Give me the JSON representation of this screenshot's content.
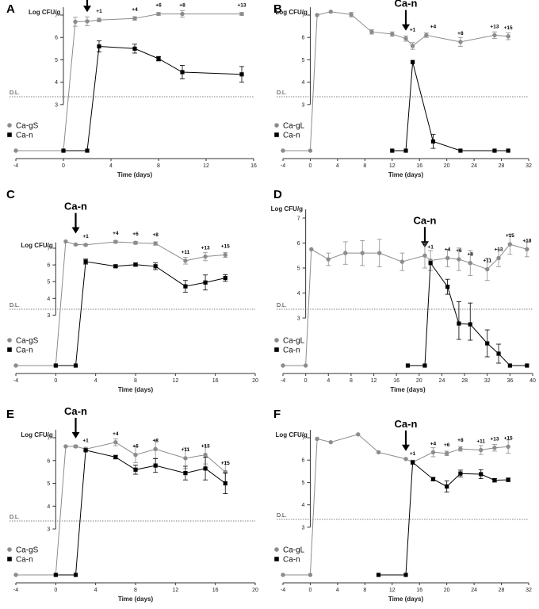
{
  "figure": {
    "panels": [
      "A",
      "B",
      "C",
      "D",
      "E",
      "F"
    ],
    "ylabel": "Log CFU/g",
    "xlabel": "Time (days)",
    "detection_limit_label": "D.L.",
    "arrow_label": "Ca-n",
    "colors": {
      "resident": "#8c8c8c",
      "challenge": "#000000"
    }
  },
  "chart_data": [
    {
      "type": "line",
      "panel": "A",
      "title": "",
      "xlabel": "Time (days)",
      "ylabel": "Log CFU/g",
      "xlim": [
        -4,
        16
      ],
      "xticks": [
        -4,
        0,
        4,
        8,
        12,
        16
      ],
      "ylim": [
        0,
        7.5
      ],
      "yticks": [
        3,
        4,
        5,
        6,
        7
      ],
      "detection_limit": 3.35,
      "arrow_x": 2,
      "series": [
        {
          "name": "Ca-gS",
          "x": [
            -4,
            0,
            1,
            2,
            3,
            6,
            8,
            10,
            15
          ],
          "y": [
            0,
            0,
            6.7,
            6.72,
            6.78,
            6.85,
            7.05,
            7.05,
            7.05
          ],
          "err": [
            0,
            0,
            0.2,
            0.2,
            0.08,
            0.08,
            0.06,
            0.15,
            0.06
          ]
        },
        {
          "name": "Ca-n",
          "x": [
            0,
            2,
            3,
            6,
            8,
            10,
            15
          ],
          "y": [
            0,
            0,
            5.6,
            5.5,
            5.05,
            4.45,
            4.35
          ],
          "err": [
            0,
            0,
            0.25,
            0.2,
            0.1,
            0.3,
            0.35
          ]
        }
      ],
      "annotations": [
        {
          "x": 3,
          "y": 6.78,
          "text": "+1"
        },
        {
          "x": 6,
          "y": 6.85,
          "text": "+4"
        },
        {
          "x": 8,
          "y": 7.05,
          "text": "+6"
        },
        {
          "x": 10,
          "y": 7.05,
          "text": "+8"
        },
        {
          "x": 15,
          "y": 7.05,
          "text": "+13"
        }
      ],
      "legend": [
        "Ca-gS",
        "Ca-n"
      ]
    },
    {
      "type": "line",
      "panel": "B",
      "title": "",
      "xlabel": "Time (days)",
      "ylabel": "Log CFU/g",
      "xlim": [
        -4,
        32
      ],
      "xticks": [
        -4,
        0,
        4,
        8,
        12,
        16,
        20,
        24,
        28,
        32
      ],
      "ylim": [
        0,
        7.5
      ],
      "yticks": [
        3,
        4,
        5,
        6,
        7
      ],
      "detection_limit": 3.35,
      "arrow_x": 14,
      "series": [
        {
          "name": "Ca-gL",
          "x": [
            -4,
            0,
            1,
            3,
            6,
            9,
            12,
            14,
            15,
            17,
            22,
            27,
            29
          ],
          "y": [
            0,
            0,
            7.0,
            7.15,
            7.02,
            6.25,
            6.15,
            5.95,
            5.62,
            6.1,
            5.8,
            6.1,
            6.05
          ],
          "err": [
            0,
            0,
            0,
            0,
            0.1,
            0.1,
            0.1,
            0.12,
            0.15,
            0.1,
            0.2,
            0.15,
            0.15
          ]
        },
        {
          "name": "Ca-n",
          "x": [
            12,
            14,
            15,
            18,
            22,
            27,
            29
          ],
          "y": [
            0,
            0,
            4.9,
            0.6,
            0,
            0,
            0
          ],
          "err": [
            0,
            0,
            0,
            0.45,
            0,
            0,
            0
          ]
        }
      ],
      "annotations": [
        {
          "x": 15,
          "y": 5.95,
          "text": "+1"
        },
        {
          "x": 18,
          "y": 6.1,
          "text": "+4"
        },
        {
          "x": 22,
          "y": 5.8,
          "text": "+8"
        },
        {
          "x": 27,
          "y": 6.1,
          "text": "+13"
        },
        {
          "x": 29,
          "y": 6.05,
          "text": "+15"
        }
      ],
      "legend": [
        "Ca-gL",
        "Ca-n"
      ]
    },
    {
      "type": "line",
      "panel": "C",
      "title": "",
      "xlabel": "Time (days)",
      "ylabel": "Log CFU/g",
      "xlim": [
        -4,
        20
      ],
      "xticks": [
        -4,
        0,
        4,
        8,
        12,
        16,
        20
      ],
      "ylim": [
        0,
        7.5
      ],
      "yticks": [
        3,
        4,
        5,
        6,
        7
      ],
      "detection_limit": 3.35,
      "arrow_x": 2,
      "series": [
        {
          "name": "Ca-gS",
          "x": [
            -4,
            0,
            1,
            2,
            3,
            6,
            8,
            10,
            13,
            15,
            17
          ],
          "y": [
            0,
            0,
            7.4,
            7.22,
            7.2,
            7.38,
            7.32,
            7.28,
            6.25,
            6.5,
            6.6
          ],
          "err": [
            0,
            0,
            0,
            0.05,
            0.05,
            0.08,
            0.08,
            0.1,
            0.2,
            0.25,
            0.15
          ]
        },
        {
          "name": "Ca-n",
          "x": [
            0,
            2,
            3,
            6,
            8,
            10,
            13,
            15,
            17
          ],
          "y": [
            0,
            0,
            6.2,
            5.92,
            6.02,
            5.92,
            4.72,
            4.95,
            5.22
          ],
          "err": [
            0,
            0,
            0.15,
            0.08,
            0.1,
            0.2,
            0.35,
            0.45,
            0.2
          ]
        }
      ],
      "annotations": [
        {
          "x": 3,
          "y": 7.2,
          "text": "+1"
        },
        {
          "x": 6,
          "y": 7.38,
          "text": "+4"
        },
        {
          "x": 8,
          "y": 7.32,
          "text": "+6"
        },
        {
          "x": 10,
          "y": 7.28,
          "text": "+8"
        },
        {
          "x": 13,
          "y": 6.25,
          "text": "+11"
        },
        {
          "x": 15,
          "y": 6.5,
          "text": "+13"
        },
        {
          "x": 17,
          "y": 6.6,
          "text": "+15"
        }
      ],
      "legend": [
        "Ca-gS",
        "Ca-n"
      ]
    },
    {
      "type": "line",
      "panel": "D",
      "title": "",
      "xlabel": "Time (days)",
      "ylabel": "Log CFU/g",
      "xlim": [
        -4,
        40
      ],
      "xticks": [
        -4,
        0,
        4,
        8,
        12,
        16,
        20,
        24,
        28,
        32,
        36,
        40
      ],
      "ylim": [
        0,
        7.5
      ],
      "yticks": [
        3,
        4,
        5,
        6,
        7
      ],
      "detection_limit": 3.35,
      "arrow_x": 21,
      "series": [
        {
          "name": "Ca-gL",
          "x": [
            -4,
            0,
            1,
            4,
            7,
            10,
            13,
            17,
            21,
            22,
            25,
            27,
            29,
            32,
            34,
            36,
            39
          ],
          "y": [
            0,
            0,
            5.75,
            5.35,
            5.6,
            5.6,
            5.6,
            5.25,
            5.5,
            5.3,
            5.4,
            5.35,
            5.2,
            4.95,
            5.4,
            5.95,
            5.75
          ],
          "err": [
            0,
            0,
            0,
            0.25,
            0.45,
            0.5,
            0.55,
            0.35,
            0.5,
            0.4,
            0.35,
            0.45,
            0.5,
            0.45,
            0.35,
            0.4,
            0.3
          ]
        },
        {
          "name": "Ca-n",
          "x": [
            18,
            21,
            22,
            25,
            27,
            29,
            32,
            34,
            36,
            39
          ],
          "y": [
            0,
            0,
            5.2,
            4.25,
            2.65,
            2.6,
            1.4,
            0.75,
            0,
            0
          ],
          "err": [
            0,
            0,
            0,
            0.3,
            1.0,
            1.0,
            0.85,
            0.6,
            0,
            0
          ]
        }
      ],
      "annotations": [
        {
          "x": 22,
          "y": 5.5,
          "text": "+1"
        },
        {
          "x": 25,
          "y": 5.4,
          "text": "+4"
        },
        {
          "x": 27,
          "y": 5.35,
          "text": "+6"
        },
        {
          "x": 29,
          "y": 5.2,
          "text": "+8"
        },
        {
          "x": 32,
          "y": 4.95,
          "text": "+11"
        },
        {
          "x": 34,
          "y": 5.4,
          "text": "+13"
        },
        {
          "x": 36,
          "y": 5.95,
          "text": "+15"
        },
        {
          "x": 39,
          "y": 5.75,
          "text": "+18"
        }
      ],
      "legend": [
        "Ca-gL",
        "Ca-n"
      ]
    },
    {
      "type": "line",
      "panel": "E",
      "title": "",
      "xlabel": "Time (days)",
      "ylabel": "Log CFU/g",
      "xlim": [
        -4,
        20
      ],
      "xticks": [
        -4,
        0,
        4,
        8,
        12,
        16,
        20
      ],
      "ylim": [
        0,
        7.5
      ],
      "yticks": [
        3,
        4,
        5,
        6,
        7
      ],
      "detection_limit": 3.35,
      "arrow_x": 2,
      "series": [
        {
          "name": "Ca-gS",
          "x": [
            -4,
            0,
            1,
            2,
            3,
            6,
            8,
            10,
            13,
            15,
            17
          ],
          "y": [
            0,
            0,
            6.62,
            6.62,
            6.5,
            6.8,
            6.25,
            6.5,
            6.1,
            6.25,
            5.5
          ],
          "err": [
            0,
            0,
            0,
            0.05,
            0.08,
            0.15,
            0.35,
            0.4,
            0.45,
            0.4,
            0.45
          ]
        },
        {
          "name": "Ca-n",
          "x": [
            0,
            2,
            3,
            6,
            8,
            10,
            13,
            15,
            17
          ],
          "y": [
            0,
            0,
            6.45,
            6.15,
            5.6,
            5.78,
            5.45,
            5.65,
            5.0
          ],
          "err": [
            0,
            0,
            0,
            0.08,
            0.2,
            0.3,
            0.3,
            0.5,
            0.45
          ]
        }
      ],
      "annotations": [
        {
          "x": 3,
          "y": 6.5,
          "text": "+1"
        },
        {
          "x": 6,
          "y": 6.8,
          "text": "+4"
        },
        {
          "x": 8,
          "y": 6.25,
          "text": "+6"
        },
        {
          "x": 10,
          "y": 6.5,
          "text": "+8"
        },
        {
          "x": 13,
          "y": 6.1,
          "text": "+11"
        },
        {
          "x": 15,
          "y": 6.25,
          "text": "+13"
        },
        {
          "x": 17,
          "y": 5.5,
          "text": "+15"
        }
      ],
      "legend": [
        "Ca-gS",
        "Ca-n"
      ]
    },
    {
      "type": "line",
      "panel": "F",
      "title": "",
      "xlabel": "Time (days)",
      "ylabel": "Log CFU/g",
      "xlim": [
        -4,
        32
      ],
      "xticks": [
        -4,
        0,
        4,
        8,
        12,
        16,
        20,
        24,
        28,
        32
      ],
      "ylim": [
        0,
        7.5
      ],
      "yticks": [
        3,
        4,
        5,
        6,
        7
      ],
      "detection_limit": 3.35,
      "arrow_x": 14,
      "series": [
        {
          "name": "Ca-gL",
          "x": [
            -4,
            0,
            1,
            3,
            7,
            10,
            14,
            15,
            18,
            20,
            22,
            25,
            27,
            29
          ],
          "y": [
            0,
            0,
            6.95,
            6.8,
            7.15,
            6.35,
            6.05,
            5.9,
            6.35,
            6.3,
            6.5,
            6.45,
            6.55,
            6.6
          ],
          "err": [
            0,
            0,
            0,
            0,
            0,
            0,
            0,
            0.1,
            0.2,
            0.1,
            0.1,
            0.2,
            0.15,
            0.3
          ]
        },
        {
          "name": "Ca-n",
          "x": [
            10,
            14,
            15,
            18,
            20,
            22,
            25,
            27,
            29
          ],
          "y": [
            0,
            0,
            5.9,
            5.15,
            4.82,
            5.4,
            5.37,
            5.1,
            5.12
          ],
          "err": [
            0,
            0,
            0,
            0.08,
            0.25,
            0.15,
            0.2,
            0.08,
            0.08
          ]
        }
      ],
      "annotations": [
        {
          "x": 15,
          "y": 5.9,
          "text": "+1"
        },
        {
          "x": 18,
          "y": 6.35,
          "text": "+4"
        },
        {
          "x": 20,
          "y": 6.3,
          "text": "+6"
        },
        {
          "x": 22,
          "y": 6.5,
          "text": "+8"
        },
        {
          "x": 25,
          "y": 6.45,
          "text": "+11"
        },
        {
          "x": 27,
          "y": 6.55,
          "text": "+13"
        },
        {
          "x": 29,
          "y": 6.6,
          "text": "+15"
        }
      ],
      "legend": [
        "Ca-gL",
        "Ca-n"
      ]
    }
  ]
}
